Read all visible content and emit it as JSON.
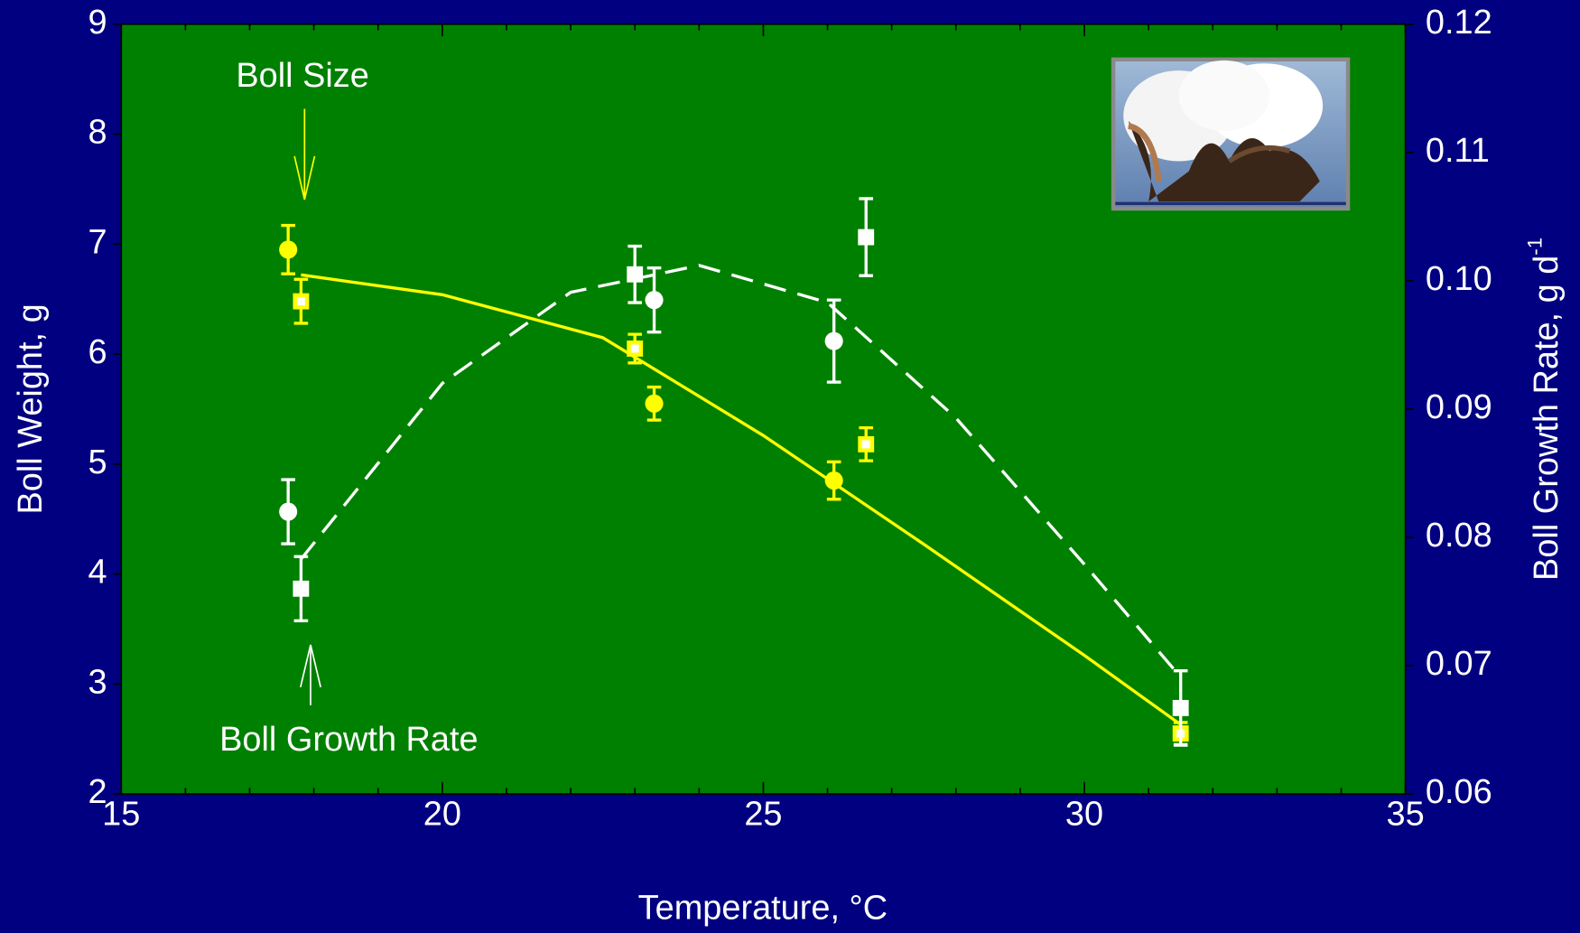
{
  "chart_data": {
    "type": "scatter",
    "xlabel": "Temperature, °C",
    "ylabel": "Boll Weight, g",
    "y2label": "Boll Growth Rate, g d",
    "y2label_sup": "-1",
    "xlim": [
      15,
      35
    ],
    "xticks": [
      15,
      20,
      25,
      30,
      35
    ],
    "xminorticks": [
      16,
      17,
      18,
      19,
      21,
      22,
      23,
      24,
      26,
      27,
      28,
      29,
      31,
      32,
      33,
      34
    ],
    "ylim": [
      2,
      9
    ],
    "yticks": [
      2,
      3,
      4,
      5,
      6,
      7,
      8,
      9
    ],
    "y2lim": [
      0.06,
      0.12
    ],
    "y2ticks": [
      0.06,
      0.07,
      0.08,
      0.09,
      {
        "value": 0.1,
        "label": "0.10"
      },
      0.11,
      0.12
    ],
    "background": "#008000",
    "annotations": [
      {
        "text": "Boll Size",
        "color": "#ffff00"
      },
      {
        "text": "Boll Growth Rate",
        "color": "#ffffff"
      }
    ],
    "series": [
      {
        "marker": "circle",
        "color": "#ffff00",
        "axis": "y",
        "x": [
          17.6,
          23.3,
          26.1
        ],
        "values": [
          6.95,
          5.55,
          4.85
        ],
        "errors": [
          0.22,
          0.15,
          0.17
        ]
      },
      {
        "marker": "square-open",
        "color": "#ffff00",
        "axis": "y",
        "x": [
          17.8,
          23.0,
          26.6,
          31.5
        ],
        "values": [
          6.48,
          6.05,
          5.18,
          2.55
        ],
        "errors": [
          0.2,
          0.13,
          0.15,
          0.1
        ]
      },
      {
        "marker": "circle",
        "color": "#ffffff",
        "axis": "y2",
        "x": [
          17.6,
          23.3,
          26.1
        ],
        "values": [
          0.082,
          0.0985,
          0.0953
        ],
        "errors": [
          0.0025,
          0.0025,
          0.0032
        ]
      },
      {
        "marker": "square",
        "color": "#ffffff",
        "axis": "y2",
        "x": [
          17.8,
          23.0,
          26.6,
          31.5
        ],
        "values": [
          0.076,
          0.1005,
          0.1034,
          0.0667
        ],
        "errors": [
          0.0025,
          0.0022,
          0.003,
          0.0029
        ]
      }
    ],
    "fits": [
      {
        "color": "#ffff00",
        "dash": false,
        "axis": "y",
        "x": [
          17.8,
          20,
          22.5,
          25,
          27.5,
          30,
          31.5
        ],
        "values": [
          6.72,
          6.54,
          6.15,
          5.26,
          4.27,
          3.26,
          2.63
        ]
      },
      {
        "color": "#ffffff",
        "dash": true,
        "axis": "y2",
        "x": [
          17.8,
          20,
          22,
          24,
          26,
          28,
          30,
          31.5
        ],
        "values": [
          0.0783,
          0.092,
          0.0991,
          0.1012,
          0.0983,
          0.0893,
          0.0779,
          0.0691
        ]
      }
    ]
  }
}
